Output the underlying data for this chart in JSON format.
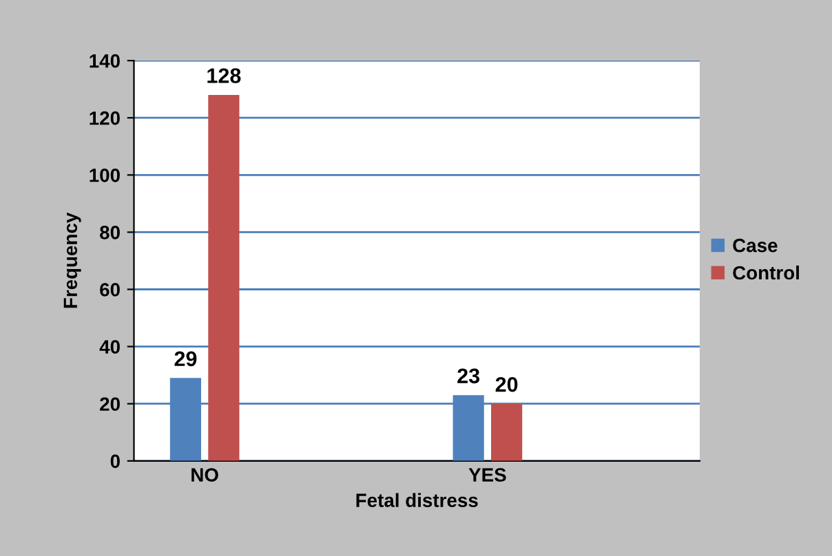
{
  "chart_data": {
    "type": "bar",
    "xlabel": "Fetal distress",
    "ylabel": "Frequency",
    "categories": [
      "NO",
      "YES"
    ],
    "series": [
      {
        "name": "Case",
        "color": "#4f81bd",
        "values": [
          29,
          23
        ]
      },
      {
        "name": "Control",
        "color": "#c0504d",
        "values": [
          128,
          20
        ]
      }
    ],
    "ylim": [
      0,
      140
    ],
    "yticks": [
      0,
      20,
      40,
      60,
      80,
      100,
      120,
      140
    ],
    "grid": "y",
    "legend": "right",
    "data_labels": true
  }
}
